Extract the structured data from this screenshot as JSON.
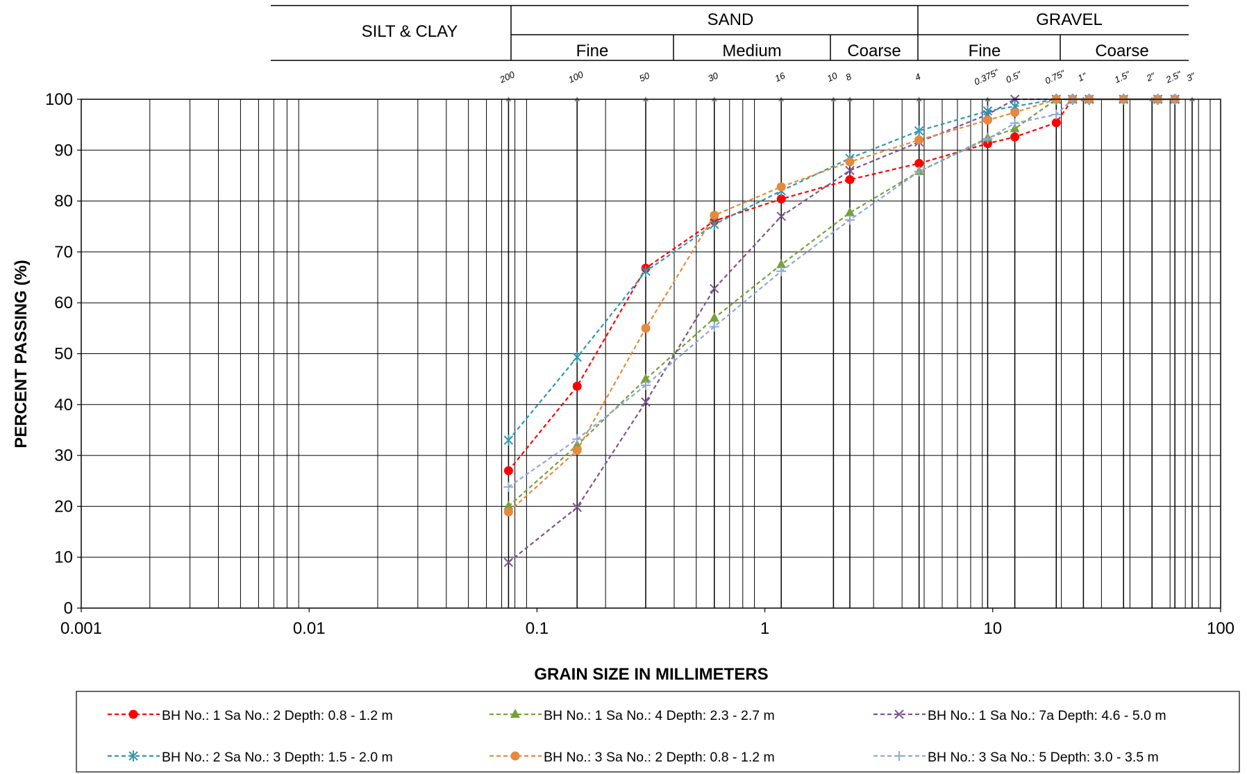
{
  "chart_data": {
    "type": "line",
    "x_scale": "log",
    "xlim": [
      0.001,
      100
    ],
    "ylim": [
      0,
      100
    ],
    "grid": true,
    "xlabel": "GRAIN SIZE IN MILLIMETERS",
    "ylabel": "PERCENT PASSING (%)",
    "x_ticks": [
      "0.001",
      "0.01",
      "0.1",
      "1",
      "10",
      "100"
    ],
    "y_ticks": [
      "0",
      "10",
      "20",
      "30",
      "40",
      "50",
      "60",
      "70",
      "80",
      "90",
      "100"
    ],
    "legend_position": "bottom",
    "soil_classes": {
      "silt_clay": "SILT & CLAY",
      "sand": "SAND",
      "gravel": "GRAVEL",
      "sand_fine": "Fine",
      "sand_medium": "Medium",
      "sand_coarse": "Coarse",
      "gravel_fine": "Fine",
      "gravel_coarse": "Coarse"
    },
    "sieves": [
      {
        "label": "200",
        "size": 0.075
      },
      {
        "label": "100",
        "size": 0.15
      },
      {
        "label": "50",
        "size": 0.3
      },
      {
        "label": "30",
        "size": 0.6
      },
      {
        "label": "16",
        "size": 1.18
      },
      {
        "label": "10",
        "size": 2.0
      },
      {
        "label": "8",
        "size": 2.36
      },
      {
        "label": "4",
        "size": 4.75
      },
      {
        "label": "0.375\"",
        "size": 9.5
      },
      {
        "label": "0.5\"",
        "size": 12.5
      },
      {
        "label": "0.75\"",
        "size": 19.0
      },
      {
        "label": "1\"",
        "size": 25.0
      },
      {
        "label": "1.5\"",
        "size": 37.5
      },
      {
        "label": "2\"",
        "size": 50.0
      },
      {
        "label": "2.5\"",
        "size": 63.0
      },
      {
        "label": "3\"",
        "size": 75.0
      }
    ],
    "series": [
      {
        "name": "BH No.: 1 Sa No.: 2 Depth: 0.8 - 1.2 m",
        "color": "#ff0000",
        "marker": "circle",
        "x": [
          0.075,
          0.15,
          0.3,
          0.6,
          1.18,
          2.36,
          4.75,
          9.5,
          12.5,
          19.0,
          22.4,
          26.5,
          37.5,
          53.0,
          63.0
        ],
        "y": [
          27,
          43.6,
          66.8,
          76.1,
          80.4,
          84.2,
          87.4,
          91.3,
          92.6,
          95.4,
          100,
          100,
          100,
          100,
          100
        ]
      },
      {
        "name": "BH No.: 1 Sa No.: 4 Depth: 2.3 - 2.7 m",
        "color": "#77a03c",
        "marker": "triangle",
        "x": [
          0.075,
          0.15,
          0.3,
          0.6,
          1.18,
          2.36,
          4.75,
          9.5,
          12.5,
          19.0,
          22.4,
          26.5,
          37.5,
          53.0,
          63.0
        ],
        "y": [
          20,
          32,
          45,
          57,
          67.5,
          77.7,
          85.8,
          92.4,
          94.2,
          100,
          100,
          100,
          100,
          100,
          100
        ]
      },
      {
        "name": "BH No.: 1 Sa No.: 7a Depth: 4.6 - 5.0 m",
        "color": "#7b5591",
        "marker": "x",
        "x": [
          0.075,
          0.15,
          0.3,
          0.6,
          1.18,
          2.36,
          4.75,
          9.5,
          12.5,
          19.0,
          22.4,
          26.5,
          37.5,
          53.0,
          63.0
        ],
        "y": [
          9,
          19.8,
          40.5,
          62.8,
          77,
          86,
          91.6,
          97,
          100,
          100,
          100,
          100,
          100,
          100,
          100
        ]
      },
      {
        "name": "BH No.: 2 Sa No.: 3 Depth: 1.5 - 2.0 m",
        "color": "#2f97b3",
        "marker": "star",
        "x": [
          0.075,
          0.15,
          0.3,
          0.6,
          1.18,
          2.36,
          4.75,
          9.5,
          12.5,
          19.0,
          22.4,
          26.5,
          37.5,
          53.0,
          63.0
        ],
        "y": [
          33,
          49.3,
          66.2,
          75.4,
          82,
          88.4,
          93.8,
          97.7,
          98.6,
          100,
          100,
          100,
          100,
          100,
          100
        ]
      },
      {
        "name": "BH No.: 3 Sa No.: 2 Depth: 0.8 - 1.2 m",
        "color": "#e58a3c",
        "marker": "circle",
        "x": [
          0.075,
          0.15,
          0.3,
          0.6,
          1.18,
          2.36,
          4.75,
          9.5,
          12.5,
          19.0,
          22.4,
          26.5,
          37.5,
          53.0,
          63.0
        ],
        "y": [
          18.9,
          31,
          55,
          77.2,
          82.8,
          87.7,
          92,
          95.9,
          97.4,
          100,
          100,
          100,
          100,
          100,
          100
        ]
      },
      {
        "name": "BH No.: 3 Sa No.: 5 Depth: 3.0 - 3.5 m",
        "color": "#8ea7d8",
        "marker": "plus",
        "x": [
          0.075,
          0.15,
          0.3,
          0.6,
          1.18,
          2.36,
          4.75,
          9.5,
          12.5,
          19.0,
          22.4,
          26.5,
          37.5,
          53.0,
          63.0
        ],
        "y": [
          23.8,
          33.2,
          43.8,
          55.3,
          66.2,
          76.3,
          85.8,
          92.2,
          95.3,
          97,
          100,
          100,
          100,
          100,
          100
        ]
      }
    ]
  }
}
